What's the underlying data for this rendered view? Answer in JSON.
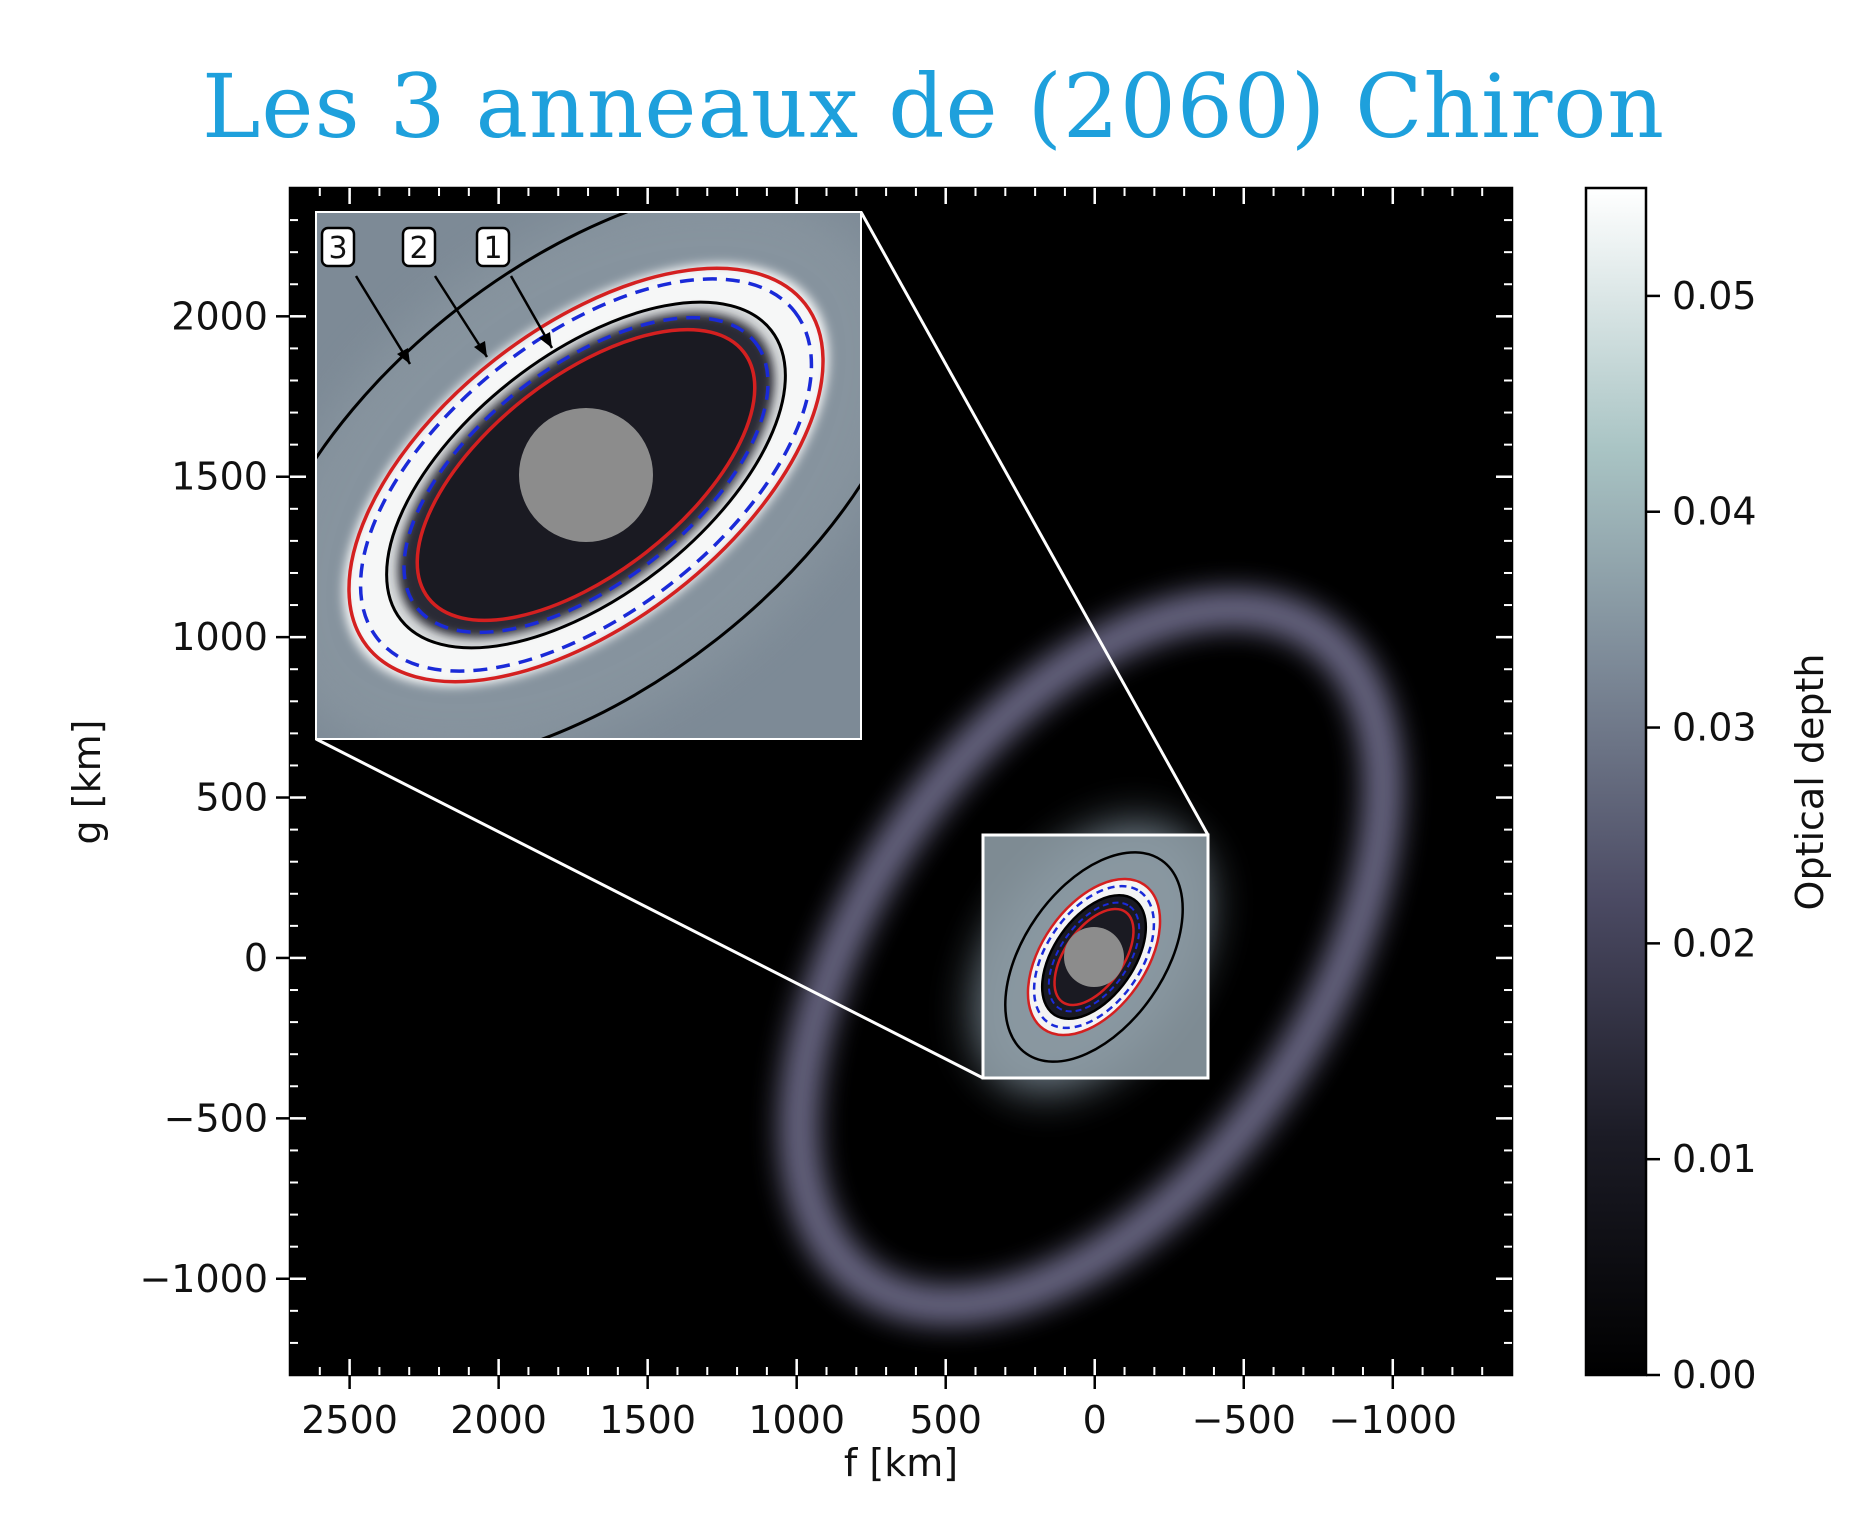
{
  "title": "Les 3 anneaux de (2060) Chiron",
  "colors": {
    "title": "#1ea0dc",
    "ring_1": "#000000",
    "ring_2_solid": "#d42020",
    "ring_2_dashed": "#1a2ad8",
    "body": "#8c8c8c",
    "inset_frame": "#ffffff"
  },
  "chart_data": {
    "type": "heatmap",
    "xlabel": "f [km]",
    "ylabel": "g [km]",
    "x_ticks": [
      2500,
      2000,
      1500,
      1000,
      500,
      0,
      -500,
      -1000
    ],
    "x_tick_labels": [
      "2500",
      "2000",
      "1500",
      "1000",
      "500",
      "0",
      "−500",
      "−1000"
    ],
    "y_ticks": [
      2000,
      1500,
      1000,
      500,
      0,
      -500,
      -1000
    ],
    "y_tick_labels": [
      "2000",
      "1500",
      "1000",
      "500",
      "0",
      "−500",
      "−1000"
    ],
    "xlim": [
      2700,
      -1400
    ],
    "ylim": [
      -1300,
      2400
    ],
    "x_inverted": true,
    "colorbar": {
      "label": "Optical depth",
      "range": [
        0.0,
        0.055
      ],
      "ticks": [
        0.0,
        0.01,
        0.02,
        0.03,
        0.04,
        0.05
      ],
      "tick_labels": [
        "0.00",
        "0.01",
        "0.02",
        "0.03",
        "0.04",
        "0.05"
      ],
      "colormap": "bone"
    },
    "body": {
      "center_f": 0,
      "center_g": 0,
      "radius_km": 100
    },
    "outer_diffuse_ring": {
      "semi_major_km": 1400,
      "semi_minor_km": 750,
      "tilt_deg": -55,
      "optical_depth_peak": 0.022
    },
    "inset_window": {
      "f_range": [
        380,
        -380
      ],
      "g_range": [
        -380,
        380
      ]
    },
    "rings": [
      {
        "label": "1",
        "semi_major_km": 220,
        "semi_minor_km": 125,
        "tilt_deg": -55,
        "style": "black solid"
      },
      {
        "label": "2",
        "semi_major_km": 265,
        "semi_minor_km": 150,
        "tilt_deg": -55,
        "style": "red solid / blue dashed"
      },
      {
        "label": "3",
        "semi_major_km": 345,
        "semi_minor_km": 205,
        "tilt_deg": -55,
        "style": "black solid"
      }
    ],
    "ring_tags": [
      "3",
      "2",
      "1"
    ]
  }
}
